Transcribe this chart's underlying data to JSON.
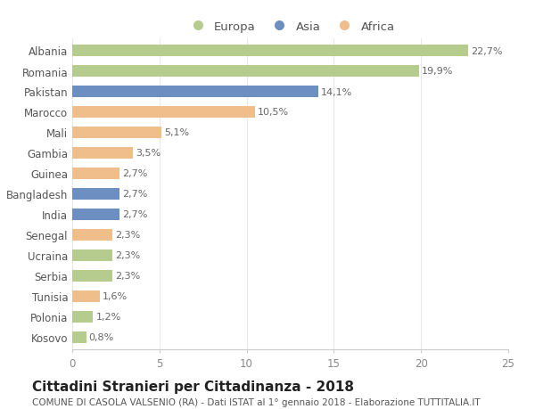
{
  "countries": [
    "Albania",
    "Romania",
    "Pakistan",
    "Marocco",
    "Mali",
    "Gambia",
    "Guinea",
    "Bangladesh",
    "India",
    "Senegal",
    "Ucraina",
    "Serbia",
    "Tunisia",
    "Polonia",
    "Kosovo"
  ],
  "values": [
    22.7,
    19.9,
    14.1,
    10.5,
    5.1,
    3.5,
    2.7,
    2.7,
    2.7,
    2.3,
    2.3,
    2.3,
    1.6,
    1.2,
    0.8
  ],
  "labels": [
    "22,7%",
    "19,9%",
    "14,1%",
    "10,5%",
    "5,1%",
    "3,5%",
    "2,7%",
    "2,7%",
    "2,7%",
    "2,3%",
    "2,3%",
    "2,3%",
    "1,6%",
    "1,2%",
    "0,8%"
  ],
  "continents": [
    "Europa",
    "Europa",
    "Asia",
    "Africa",
    "Africa",
    "Africa",
    "Africa",
    "Asia",
    "Asia",
    "Africa",
    "Europa",
    "Europa",
    "Africa",
    "Europa",
    "Europa"
  ],
  "colors": {
    "Europa": "#b5cc8e",
    "Asia": "#6d8ec0",
    "Africa": "#f0be8a"
  },
  "legend_order": [
    "Europa",
    "Asia",
    "Africa"
  ],
  "title": "Cittadini Stranieri per Cittadinanza - 2018",
  "subtitle": "COMUNE DI CASOLA VALSENIO (RA) - Dati ISTAT al 1° gennaio 2018 - Elaborazione TUTTITALIA.IT",
  "xlim": [
    0,
    25
  ],
  "xticks": [
    0,
    5,
    10,
    15,
    20,
    25
  ],
  "background_color": "#ffffff",
  "grid_color": "#e8e8e8",
  "bar_height": 0.55,
  "title_fontsize": 11,
  "subtitle_fontsize": 7.5,
  "tick_fontsize": 8.5,
  "label_fontsize": 8,
  "legend_fontsize": 9.5
}
